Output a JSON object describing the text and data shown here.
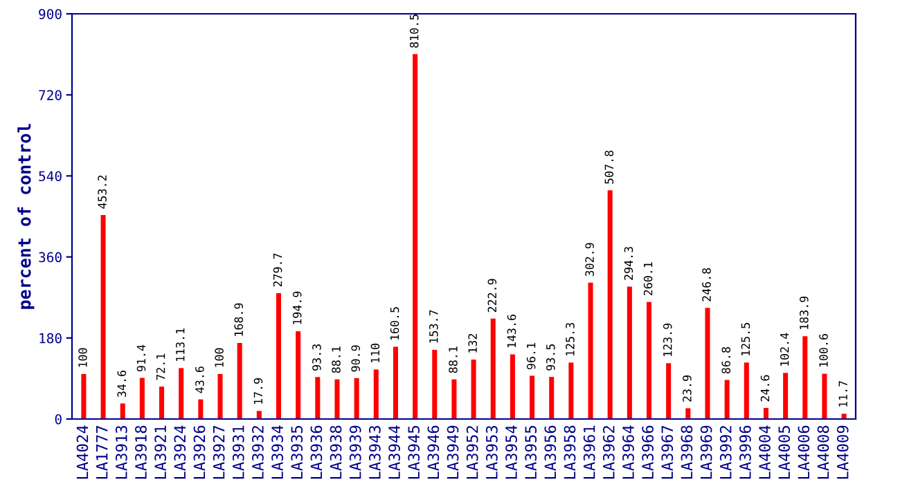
{
  "chart_data": {
    "type": "bar",
    "ylabel": "percent of control",
    "categories": [
      "LA4024",
      "LA1777",
      "LA3913",
      "LA3918",
      "LA3921",
      "LA3924",
      "LA3926",
      "LA3927",
      "LA3931",
      "LA3932",
      "LA3934",
      "LA3935",
      "LA3936",
      "LA3938",
      "LA3939",
      "LA3943",
      "LA3944",
      "LA3945",
      "LA3946",
      "LA3949",
      "LA3952",
      "LA3953",
      "LA3954",
      "LA3955",
      "LA3956",
      "LA3958",
      "LA3961",
      "LA3962",
      "LA3964",
      "LA3966",
      "LA3967",
      "LA3968",
      "LA3969",
      "LA3992",
      "LA3996",
      "LA4004",
      "LA4005",
      "LA4006",
      "LA4008",
      "LA4009"
    ],
    "values": [
      100,
      453.2,
      34.6,
      91.4,
      72.1,
      113.1,
      43.6,
      100,
      168.9,
      17.9,
      279.7,
      194.9,
      93.3,
      88.1,
      90.9,
      110,
      160.5,
      810.5,
      153.7,
      88.1,
      132,
      222.9,
      143.6,
      96.1,
      93.5,
      125.3,
      302.9,
      507.8,
      294.3,
      260.1,
      123.9,
      23.9,
      246.8,
      86.8,
      125.5,
      24.6,
      102.4,
      183.9,
      100.6,
      11.7
    ],
    "color": "#ff0000",
    "ylim": [
      0,
      900
    ],
    "yticks": [
      0,
      180,
      360,
      540,
      720,
      900
    ],
    "data_labels": true,
    "grid": false,
    "legend": false
  }
}
